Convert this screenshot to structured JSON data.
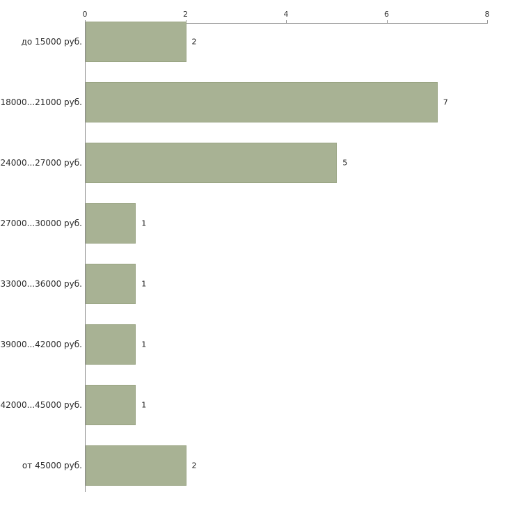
{
  "chart_data": {
    "type": "bar",
    "orientation": "horizontal",
    "title": "",
    "xlabel": "",
    "ylabel": "",
    "categories": [
      "до 15000 руб.",
      "18000...21000 руб.",
      "24000...27000 руб.",
      "27000...30000 руб.",
      "33000...36000 руб.",
      "39000...42000 руб.",
      "42000...45000 руб.",
      "от 45000 руб."
    ],
    "values": [
      2,
      7,
      5,
      1,
      1,
      1,
      1,
      2
    ],
    "value_labels": [
      "2",
      "7",
      "5",
      "1",
      "1",
      "1",
      "1",
      "2"
    ],
    "xlim": [
      0,
      8
    ],
    "x_ticks": [
      0,
      2,
      4,
      6,
      8
    ],
    "grid": false,
    "legend": false,
    "colors": {
      "bar_fill": "#a8b294",
      "bar_border": "#9aa584",
      "axis": "#8f8f8f",
      "text": "#2b2b2b"
    }
  }
}
